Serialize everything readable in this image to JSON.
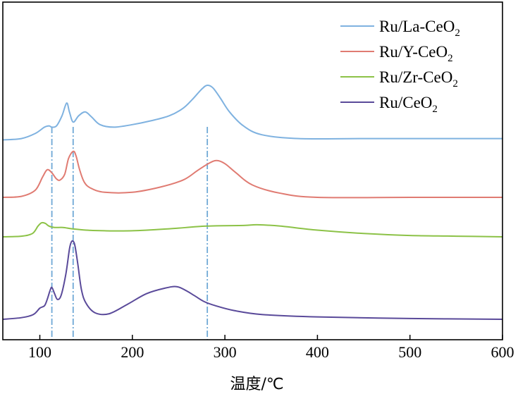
{
  "chart_data": {
    "type": "line",
    "xlabel": "温度/℃",
    "ylabel": "",
    "xlim": [
      60,
      600
    ],
    "xticks": [
      100,
      200,
      300,
      400,
      500,
      600
    ],
    "y_ticks_shown": false,
    "grid": false,
    "legend_position": "top-right",
    "reference_lines_x": [
      113,
      136,
      281
    ],
    "reference_line_color": "#6fa8d6",
    "series": [
      {
        "name": "Ru/La-CeO",
        "subscript": "2",
        "color": "#7fb2e0",
        "x": [
          60,
          80,
          95,
          105,
          110,
          113,
          118,
          124,
          129,
          132,
          136,
          142,
          149,
          156,
          165,
          180,
          200,
          220,
          240,
          255,
          265,
          275,
          281,
          287,
          295,
          305,
          320,
          340,
          380,
          450,
          550,
          600
        ],
        "y": [
          0.02,
          0.03,
          0.07,
          0.12,
          0.13,
          0.12,
          0.13,
          0.21,
          0.31,
          0.24,
          0.16,
          0.21,
          0.24,
          0.2,
          0.14,
          0.12,
          0.14,
          0.17,
          0.21,
          0.27,
          0.34,
          0.42,
          0.45,
          0.43,
          0.35,
          0.24,
          0.13,
          0.06,
          0.03,
          0.03,
          0.03,
          0.03
        ]
      },
      {
        "name": "Ru/Y-CeO",
        "subscript": "2",
        "color": "#e07b72",
        "x": [
          60,
          80,
          95,
          103,
          108,
          113,
          118,
          122,
          127,
          131,
          136,
          139,
          143,
          148,
          155,
          170,
          200,
          230,
          255,
          270,
          282,
          291,
          300,
          312,
          330,
          360,
          400,
          500,
          600
        ],
        "y": [
          0.0,
          0.01,
          0.07,
          0.2,
          0.27,
          0.24,
          0.18,
          0.17,
          0.23,
          0.38,
          0.45,
          0.41,
          0.27,
          0.15,
          0.09,
          0.05,
          0.05,
          0.1,
          0.17,
          0.26,
          0.33,
          0.36,
          0.33,
          0.24,
          0.12,
          0.04,
          0.0,
          0.0,
          0.0
        ]
      },
      {
        "name": "Ru/Zr-CeO",
        "subscript": "2",
        "color": "#8cc247",
        "x": [
          60,
          80,
          92,
          98,
          102,
          106,
          110,
          116,
          125,
          135,
          150,
          170,
          200,
          240,
          280,
          320,
          335,
          360,
          400,
          450,
          500,
          550,
          600
        ],
        "y": [
          0.0,
          0.01,
          0.05,
          0.16,
          0.21,
          0.2,
          0.16,
          0.14,
          0.14,
          0.12,
          0.1,
          0.09,
          0.09,
          0.12,
          0.16,
          0.17,
          0.18,
          0.16,
          0.1,
          0.05,
          0.02,
          0.01,
          0.0
        ]
      },
      {
        "name": "Ru/CeO",
        "subscript": "2",
        "color": "#5a4a9a",
        "x": [
          60,
          80,
          93,
          100,
          105,
          108,
          111,
          113,
          116,
          119,
          123,
          128,
          132,
          134,
          136,
          138,
          141,
          145,
          150,
          160,
          175,
          195,
          215,
          235,
          248,
          258,
          268,
          278,
          290,
          310,
          340,
          400,
          500,
          600
        ],
        "y": [
          0.0,
          0.02,
          0.06,
          0.14,
          0.17,
          0.25,
          0.36,
          0.4,
          0.32,
          0.25,
          0.3,
          0.56,
          0.88,
          0.97,
          0.98,
          0.92,
          0.7,
          0.37,
          0.2,
          0.08,
          0.07,
          0.19,
          0.32,
          0.39,
          0.41,
          0.36,
          0.29,
          0.22,
          0.17,
          0.11,
          0.06,
          0.03,
          0.01,
          0.0
        ]
      }
    ]
  }
}
